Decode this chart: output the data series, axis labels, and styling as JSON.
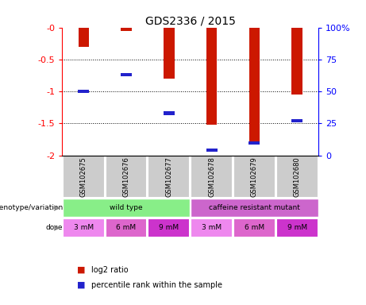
{
  "title": "GDS2336 / 2015",
  "samples": [
    "GSM102675",
    "GSM102676",
    "GSM102677",
    "GSM102678",
    "GSM102679",
    "GSM102680"
  ],
  "log2_ratios": [
    -0.3,
    -0.05,
    -0.8,
    -1.52,
    -1.78,
    -1.05
  ],
  "percentile_ranks": [
    50,
    63,
    33,
    4,
    10,
    27
  ],
  "bar_color": "#cc1800",
  "pct_color": "#2222cc",
  "ylim_min": -2.0,
  "ylim_max": 0.0,
  "yticks": [
    -2.0,
    -1.5,
    -1.0,
    -0.5,
    0.0
  ],
  "ytick_labels": [
    "-2",
    "-1.5",
    "-1",
    "-0.5",
    "-0"
  ],
  "right_yticks_pct": [
    0,
    25,
    50,
    75,
    100
  ],
  "right_ytick_labels": [
    "0",
    "25",
    "50",
    "75",
    "100%"
  ],
  "genotype_groups": [
    {
      "label": "wild type",
      "cols": [
        0,
        1,
        2
      ],
      "color": "#88ee88"
    },
    {
      "label": "caffeine resistant mutant",
      "cols": [
        3,
        4,
        5
      ],
      "color": "#cc66cc"
    }
  ],
  "doses": [
    "3 mM",
    "6 mM",
    "9 mM",
    "3 mM",
    "6 mM",
    "9 mM"
  ],
  "dose_colors": [
    "#ee88ee",
    "#dd66cc",
    "#cc33cc",
    "#ee88ee",
    "#dd66cc",
    "#cc33cc"
  ],
  "genotype_label": "genotype/variation",
  "dose_label": "dose",
  "legend_red_label": "log2 ratio",
  "legend_blue_label": "percentile rank within the sample",
  "bar_color_red": "#cc1800",
  "bar_color_blue": "#2222cc",
  "sample_bg_color": "#cccccc",
  "bar_width": 0.25
}
